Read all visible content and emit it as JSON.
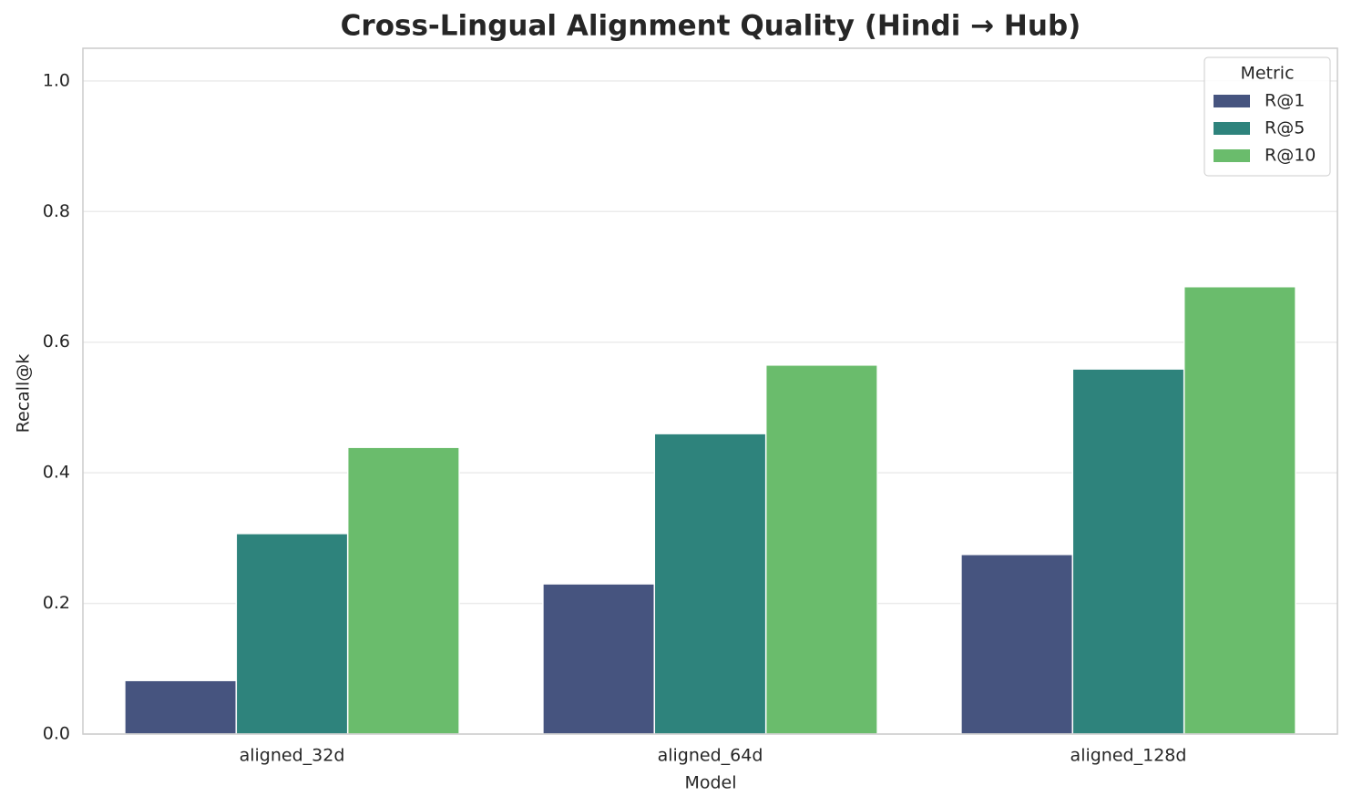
{
  "chart_data": {
    "type": "bar",
    "title": "Cross-Lingual Alignment Quality (Hindi → Hub)",
    "xlabel": "Model",
    "ylabel": "Recall@k",
    "categories": [
      "aligned_32d",
      "aligned_64d",
      "aligned_128d"
    ],
    "series": [
      {
        "name": "R@1",
        "color": "#46547f",
        "values": [
          0.082,
          0.23,
          0.275
        ]
      },
      {
        "name": "R@5",
        "color": "#2e837c",
        "values": [
          0.307,
          0.46,
          0.559
        ]
      },
      {
        "name": "R@10",
        "color": "#6abc6c",
        "values": [
          0.439,
          0.565,
          0.685
        ]
      }
    ],
    "legend_title": "Metric",
    "legend_position": "upper right",
    "ylim": [
      0,
      1.05
    ],
    "yticks": [
      {
        "value": 0,
        "label": "0.0"
      },
      0.2,
      0.4,
      0.6,
      0.8,
      {
        "value": 1,
        "label": "1.0"
      }
    ],
    "grid": true
  }
}
